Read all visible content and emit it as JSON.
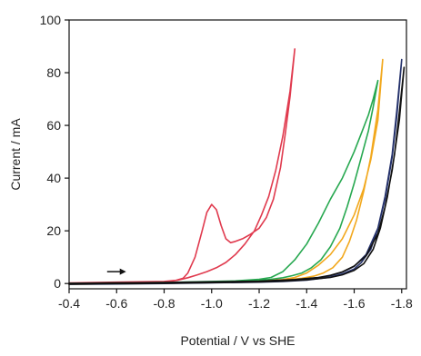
{
  "chart_data": {
    "type": "line",
    "title": "",
    "xlabel": "Potential / V vs SHE",
    "ylabel": "Current / mA",
    "xlim": [
      -0.4,
      -1.82
    ],
    "ylim": [
      -2,
      100
    ],
    "x_reversed": true,
    "grid": false,
    "legend": "none",
    "xticks": [
      -0.4,
      -0.6,
      -0.8,
      -1.0,
      -1.2,
      -1.4,
      -1.6,
      -1.8
    ],
    "xtick_labels": [
      "-0.4",
      "-0.6",
      "-0.8",
      "-1.0",
      "-1.2",
      "-1.4",
      "-1.6",
      "-1.8"
    ],
    "yticks": [
      0,
      20,
      40,
      60,
      80,
      100
    ],
    "ytick_labels": [
      "0",
      "20",
      "40",
      "60",
      "80",
      "100"
    ],
    "annotation": {
      "type": "arrow",
      "direction": "right",
      "x_from": -0.56,
      "x_to": -0.64,
      "y": 4.5
    },
    "series": [
      {
        "color": "#e03a4e",
        "x": [
          -0.4,
          -0.6,
          -0.8,
          -0.85,
          -0.88,
          -0.9,
          -0.93,
          -0.96,
          -0.98,
          -1.0,
          -1.02,
          -1.04,
          -1.06,
          -1.08,
          -1.1,
          -1.13,
          -1.16,
          -1.2,
          -1.23,
          -1.26,
          -1.29,
          -1.31,
          -1.33,
          -1.35,
          -1.33,
          -1.3,
          -1.27,
          -1.24,
          -1.21,
          -1.18,
          -1.14,
          -1.1,
          -1.06,
          -1.02,
          -0.98,
          -0.94,
          -0.9,
          -0.86,
          -0.8,
          -0.6,
          -0.4
        ],
        "y": [
          0.2,
          0.5,
          0.8,
          1.2,
          2.0,
          4.0,
          10.0,
          20.0,
          27.0,
          30.0,
          28.0,
          22.0,
          17.0,
          15.5,
          16.0,
          17.0,
          18.5,
          21.0,
          25.0,
          32.0,
          44.0,
          57.0,
          71.0,
          89.0,
          73.0,
          56.0,
          43.0,
          33.0,
          26.0,
          20.0,
          15.0,
          11.0,
          8.0,
          6.0,
          4.5,
          3.3,
          2.2,
          1.3,
          0.6,
          0.2,
          0.0
        ]
      },
      {
        "color": "#27a850",
        "x": [
          -0.4,
          -0.8,
          -1.1,
          -1.2,
          -1.25,
          -1.3,
          -1.35,
          -1.4,
          -1.45,
          -1.5,
          -1.55,
          -1.6,
          -1.63,
          -1.66,
          -1.68,
          -1.7,
          -1.68,
          -1.66,
          -1.63,
          -1.6,
          -1.57,
          -1.54,
          -1.5,
          -1.46,
          -1.42,
          -1.38,
          -1.34,
          -1.3,
          -1.25,
          -1.2,
          -1.1,
          -0.8,
          -0.4
        ],
        "y": [
          0.0,
          0.4,
          1.0,
          1.6,
          2.3,
          4.5,
          9.0,
          15.0,
          23.0,
          32.0,
          40.0,
          50.0,
          57.0,
          64.0,
          70.0,
          77.0,
          67.0,
          58.0,
          48.0,
          38.0,
          29.0,
          21.0,
          14.0,
          9.0,
          6.0,
          4.0,
          3.0,
          2.2,
          1.6,
          1.2,
          0.7,
          0.2,
          -0.2
        ]
      },
      {
        "color": "#f2a81d",
        "x": [
          -0.4,
          -0.8,
          -1.2,
          -1.3,
          -1.35,
          -1.4,
          -1.45,
          -1.5,
          -1.55,
          -1.6,
          -1.64,
          -1.67,
          -1.7,
          -1.72,
          -1.7,
          -1.67,
          -1.64,
          -1.61,
          -1.58,
          -1.55,
          -1.51,
          -1.47,
          -1.43,
          -1.38,
          -1.33,
          -1.25,
          -1.1,
          -0.8,
          -0.4
        ],
        "y": [
          0.0,
          0.2,
          0.8,
          1.5,
          2.3,
          4.0,
          7.0,
          11.0,
          17.0,
          26.0,
          36.0,
          47.0,
          62.0,
          85.0,
          66.0,
          48.0,
          35.0,
          24.0,
          16.0,
          10.0,
          6.0,
          4.0,
          2.8,
          2.0,
          1.5,
          1.0,
          0.6,
          0.1,
          -0.3
        ]
      },
      {
        "color": "#24316b",
        "x": [
          -0.4,
          -0.8,
          -1.2,
          -1.35,
          -1.45,
          -1.5,
          -1.55,
          -1.6,
          -1.65,
          -1.7,
          -1.73,
          -1.76,
          -1.78,
          -1.8,
          -1.78,
          -1.76,
          -1.73,
          -1.7,
          -1.67,
          -1.63,
          -1.6,
          -1.55,
          -1.5,
          -1.4,
          -1.3,
          -1.2,
          -0.8,
          -0.4
        ],
        "y": [
          0.0,
          0.3,
          0.8,
          1.4,
          2.2,
          3.0,
          4.3,
          6.5,
          11.0,
          21.0,
          32.0,
          48.0,
          64.0,
          85.0,
          66.0,
          49.0,
          33.0,
          21.0,
          13.0,
          8.0,
          5.5,
          3.6,
          2.4,
          1.3,
          0.8,
          0.5,
          0.0,
          -0.3
        ]
      },
      {
        "color": "#111111",
        "x": [
          -0.4,
          -0.8,
          -1.2,
          -1.35,
          -1.45,
          -1.5,
          -1.55,
          -1.6,
          -1.65,
          -1.7,
          -1.73,
          -1.76,
          -1.79,
          -1.81,
          -1.79,
          -1.77,
          -1.74,
          -1.71,
          -1.68,
          -1.64,
          -1.6,
          -1.55,
          -1.5,
          -1.4,
          -1.3,
          -1.2,
          -0.8,
          -0.4
        ],
        "y": [
          0.1,
          0.4,
          0.9,
          1.5,
          2.3,
          3.1,
          4.4,
          6.6,
          10.5,
          19.0,
          29.0,
          43.0,
          62.0,
          82.0,
          65.0,
          49.0,
          33.0,
          21.0,
          13.0,
          7.5,
          5.0,
          3.3,
          2.3,
          1.4,
          0.9,
          0.6,
          0.1,
          -0.2
        ]
      }
    ]
  }
}
